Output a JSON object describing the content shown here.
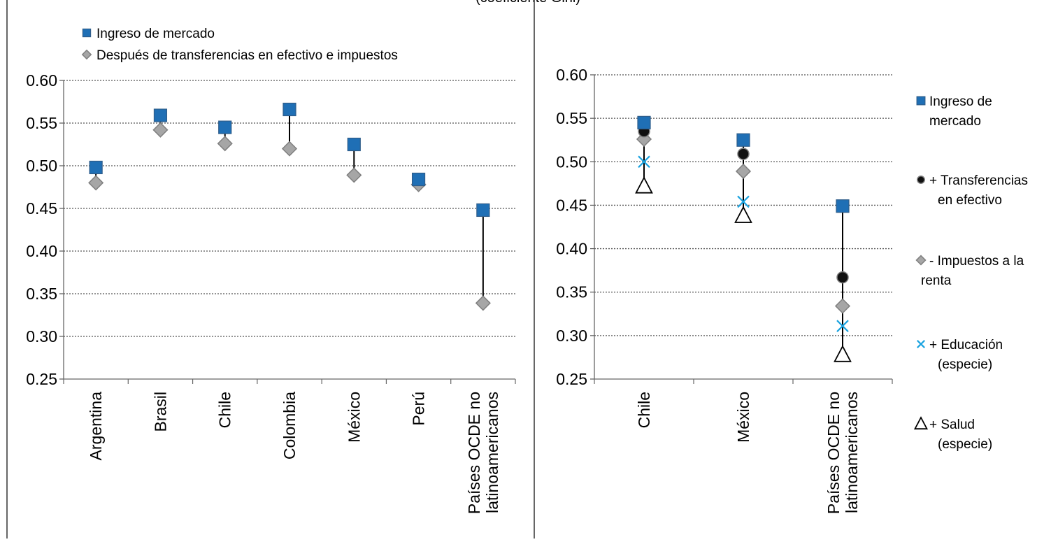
{
  "figure_title": "(coeficiente Gini)",
  "chart_data": [
    {
      "type": "scatter",
      "title": "",
      "categories": [
        "Argentina",
        "Brasil",
        "Chile",
        "Colombia",
        "México",
        "Perú",
        "Países OCDE no|latinoamericanos"
      ],
      "ylim": [
        0.25,
        0.6
      ],
      "yticks": [
        0.25,
        0.3,
        0.35,
        0.4,
        0.45,
        0.5,
        0.55,
        0.6
      ],
      "ytick_labels": [
        "0.25",
        "0.30",
        "0.35",
        "0.40",
        "0.45",
        "0.50",
        "0.55",
        "0.60"
      ],
      "grid": true,
      "drop_lines": true,
      "legend_position": "top-left",
      "series": [
        {
          "name": "Ingreso de mercado",
          "marker": "square",
          "color": "#1f6fb5",
          "values": [
            0.498,
            0.559,
            0.545,
            0.566,
            0.525,
            0.484,
            0.448
          ]
        },
        {
          "name": "Después de transferencias en efectivo e impuestos",
          "marker": "diamond",
          "color": "#a6a6a6",
          "values": [
            0.48,
            0.542,
            0.526,
            0.52,
            0.489,
            0.478,
            0.339
          ]
        }
      ]
    },
    {
      "type": "scatter",
      "title": "",
      "categories": [
        "Chile",
        "México",
        "Países OCDE no|latinoamericanos"
      ],
      "ylim": [
        0.25,
        0.6
      ],
      "yticks": [
        0.25,
        0.3,
        0.35,
        0.4,
        0.45,
        0.5,
        0.55,
        0.6
      ],
      "ytick_labels": [
        "0.25",
        "0.30",
        "0.35",
        "0.40",
        "0.45",
        "0.50",
        "0.55",
        "0.60"
      ],
      "grid": true,
      "drop_lines": true,
      "legend_position": "right",
      "series": [
        {
          "name": "Ingreso de|mercado",
          "marker": "square",
          "color": "#1f6fb5",
          "values": [
            0.545,
            0.525,
            0.449
          ]
        },
        {
          "name": "+ Transferencias|en efectivo",
          "marker": "circle",
          "color": "#111111",
          "values": [
            0.535,
            0.509,
            0.367
          ]
        },
        {
          "name": "- Impuestos a la|renta",
          "marker": "diamond",
          "color": "#a6a6a6",
          "values": [
            0.526,
            0.489,
            0.334
          ]
        },
        {
          "name": "+ Educación|(especie)",
          "marker": "x",
          "color": "#1aa3e0",
          "values": [
            0.5,
            0.454,
            0.311
          ]
        },
        {
          "name": "+ Salud|(especie)",
          "marker": "triangle",
          "color": "#000000",
          "values": [
            0.472,
            0.438,
            0.278
          ]
        }
      ]
    }
  ]
}
